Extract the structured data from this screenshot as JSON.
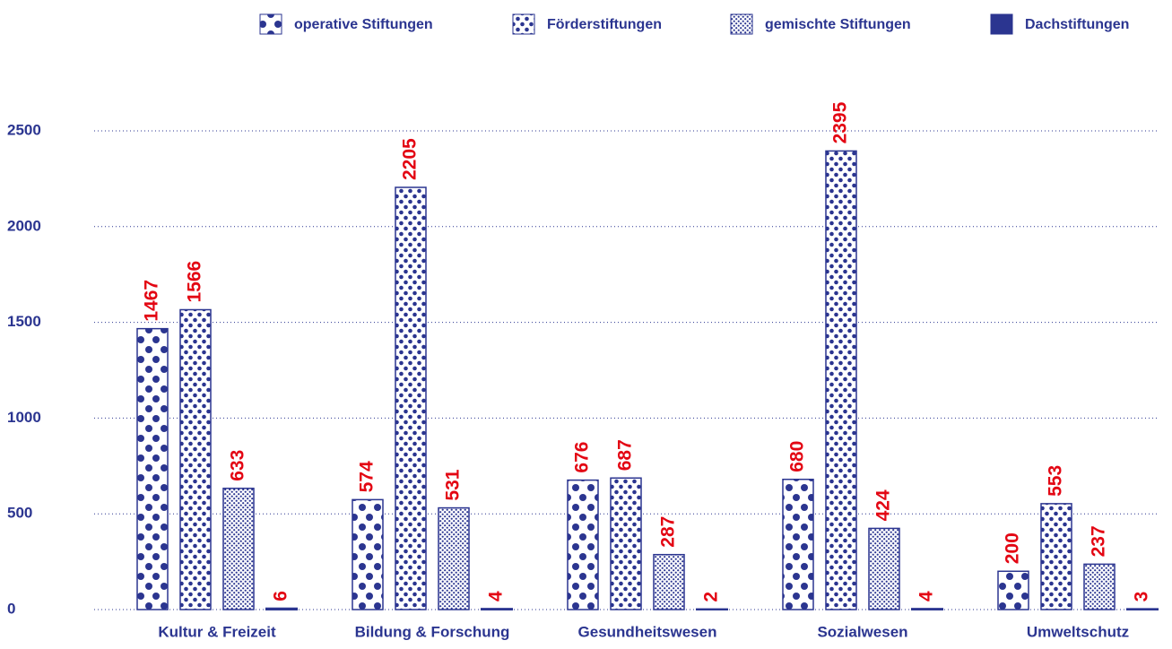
{
  "chart_data": {
    "type": "bar",
    "categories": [
      "Kultur & Freizeit",
      "Bildung & Forschung",
      "Gesundheitswesen",
      "Sozialwesen",
      "Umweltschutz"
    ],
    "series": [
      {
        "name": "operative Stiftungen",
        "color": "#2b3590",
        "values": [
          1467,
          574,
          676,
          680,
          200
        ]
      },
      {
        "name": "Förderstiftungen",
        "color": "#2b3590",
        "values": [
          1566,
          2205,
          687,
          2395,
          553
        ]
      },
      {
        "name": "gemischte Stiftungen",
        "color": "#2b3590",
        "values": [
          633,
          531,
          287,
          424,
          237
        ]
      },
      {
        "name": "Dachstiftungen",
        "color": "#2b3590",
        "values": [
          6,
          4,
          2,
          4,
          3
        ]
      }
    ],
    "value_color": "#e30613",
    "ylim": [
      0,
      2500
    ],
    "yticks": [
      0,
      500,
      1000,
      1500,
      2000,
      2500
    ],
    "grid": true,
    "legend": "top"
  }
}
